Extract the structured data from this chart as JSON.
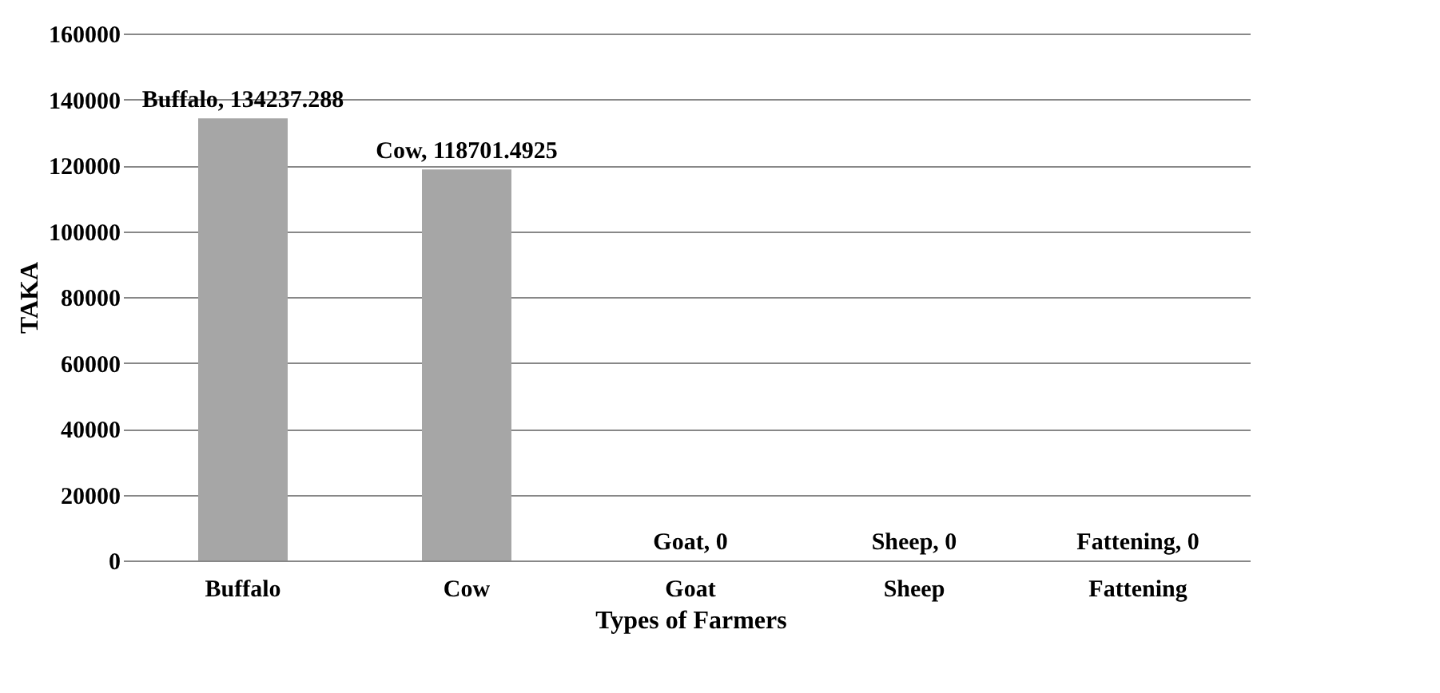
{
  "chart_data": {
    "type": "bar",
    "xlabel": "Types of Farmers",
    "ylabel": "TAKA",
    "categories": [
      "Buffalo",
      "Cow",
      "Goat",
      "Sheep",
      "Fattening"
    ],
    "values": [
      134237.288,
      118701.4925,
      0,
      0,
      0
    ],
    "value_labels": [
      "Buffalo, 134237.288",
      "Cow, 118701.4925",
      "Goat, 0",
      "Sheep, 0",
      "Fattening, 0"
    ],
    "color": "#a6a6a6",
    "ylim": [
      0,
      160000
    ],
    "yticks": [
      0,
      20000,
      40000,
      60000,
      80000,
      100000,
      120000,
      140000,
      160000
    ],
    "grid": "y"
  }
}
